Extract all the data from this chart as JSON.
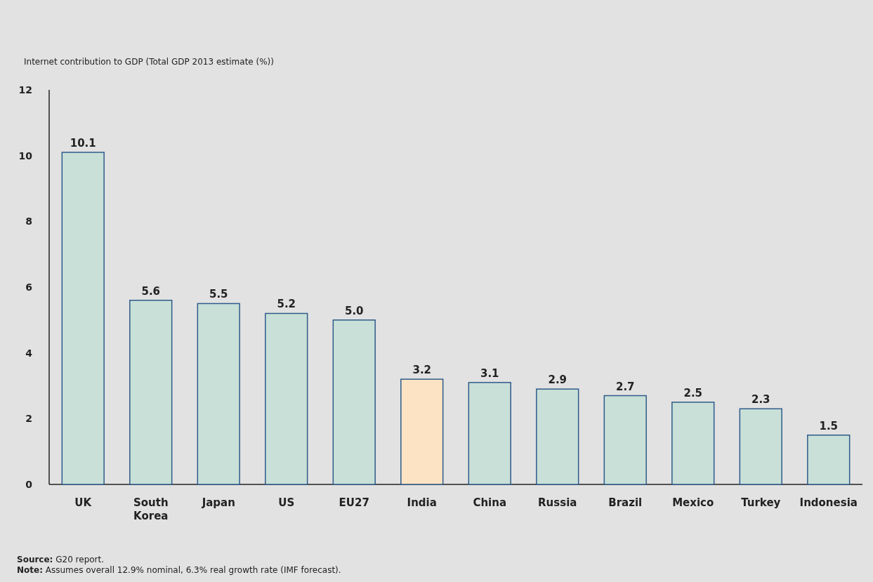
{
  "chart_data": {
    "type": "bar",
    "ylabel": "Internet contribution to GDP (Total GDP 2013 estimate (%))",
    "categories": [
      "UK",
      "South Korea",
      "Japan",
      "US",
      "EU27",
      "India",
      "China",
      "Russia",
      "Brazil",
      "Mexico",
      "Turkey",
      "Indonesia"
    ],
    "values": [
      10.1,
      5.6,
      5.5,
      5.2,
      5.0,
      3.2,
      3.1,
      2.9,
      2.7,
      2.5,
      2.3,
      1.5
    ],
    "value_labels": [
      "10.1",
      "5.6",
      "5.5",
      "5.2",
      "5.0",
      "3.2",
      "3.1",
      "2.9",
      "2.7",
      "2.5",
      "2.3",
      "1.5"
    ],
    "colors": [
      "#c9e0d8",
      "#c9e0d8",
      "#c9e0d8",
      "#c9e0d8",
      "#c9e0d8",
      "#fbe3c3",
      "#c9e0d8",
      "#c9e0d8",
      "#c9e0d8",
      "#c9e0d8",
      "#c9e0d8",
      "#c9e0d8"
    ],
    "ylim": [
      0,
      12
    ],
    "yticks": [
      0,
      2,
      4,
      6,
      8,
      10,
      12
    ],
    "annotations": [
      "Source: G20 report.",
      "Note: Assumes overall 12.9% nominal, 6.3% real growth rate (IMF forecast)."
    ]
  }
}
